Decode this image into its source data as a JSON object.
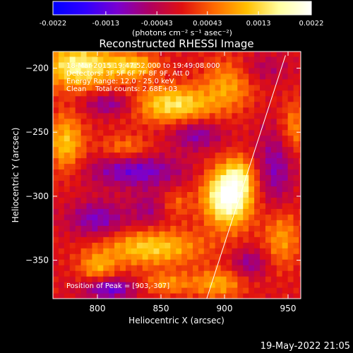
{
  "colorbar": {
    "tick_labels": [
      "-0.0022",
      "-0.0013",
      "-0.00043",
      "0.00043",
      "0.0013",
      "0.0022"
    ],
    "tick_values": [
      -0.0022,
      -0.0013,
      -0.00043,
      0.00043,
      0.0013,
      0.0022
    ],
    "unit_label": "(photons cm⁻² s⁻¹ asec⁻²)",
    "colors": [
      "#0000ff",
      "#3000ff",
      "#7a00d0",
      "#b00060",
      "#e01010",
      "#ff6a00",
      "#ffc000",
      "#ffffa0",
      "#ffffff"
    ]
  },
  "chart_data": {
    "type": "heatmap",
    "title": "Reconstructed RHESSI Image",
    "xlabel": "Heliocentric X (arcsec)",
    "ylabel": "Heliocentric Y (arcsec)",
    "xlim": [
      765,
      960
    ],
    "ylim": [
      -380,
      -187
    ],
    "x_ticks": [
      800,
      850,
      900,
      950
    ],
    "x_tick_labels": [
      "800",
      "850",
      "900",
      "950"
    ],
    "y_ticks": [
      -200,
      -250,
      -300,
      -350
    ],
    "y_tick_labels": [
      "−200",
      "−250",
      "−300",
      "−350"
    ],
    "value_range": [
      -0.0022,
      0.0022
    ],
    "info_lines": [
      "18-Mar-2015 19:47:52.000 to 19:49:08.000",
      "Detectors: 3F 5F 6F 7F 8F 9F, Att 0",
      "Energy Range: 12.0 - 25.0 keV",
      "Clean    Total counts: 2.68E+03"
    ],
    "peak_label": "Position of Peak = [903,-307]",
    "peak": [
      903,
      -307
    ],
    "limb_line": [
      [
        886,
        -380
      ],
      [
        948,
        -190
      ]
    ],
    "blobs": [
      {
        "x": 903,
        "y": -300,
        "sx": 13,
        "sy": 16,
        "a": 0.0024
      },
      {
        "x": 912,
        "y": -283,
        "sx": 8,
        "sy": 10,
        "a": 0.0008
      },
      {
        "x": 785,
        "y": -198,
        "sx": 20,
        "sy": 12,
        "a": 0.0017
      },
      {
        "x": 828,
        "y": -198,
        "sx": 14,
        "sy": 7,
        "a": 0.0012
      },
      {
        "x": 860,
        "y": -228,
        "sx": 22,
        "sy": 10,
        "a": 0.0015
      },
      {
        "x": 903,
        "y": -212,
        "sx": 14,
        "sy": 14,
        "a": 0.0009
      },
      {
        "x": 775,
        "y": -258,
        "sx": 10,
        "sy": 16,
        "a": 0.0012
      },
      {
        "x": 822,
        "y": -262,
        "sx": 14,
        "sy": 7,
        "a": 0.0007
      },
      {
        "x": 842,
        "y": -340,
        "sx": 28,
        "sy": 10,
        "a": 0.0013
      },
      {
        "x": 800,
        "y": -355,
        "sx": 10,
        "sy": 8,
        "a": 0.0009
      },
      {
        "x": 855,
        "y": -368,
        "sx": 14,
        "sy": 6,
        "a": 0.0008
      },
      {
        "x": 895,
        "y": -368,
        "sx": 14,
        "sy": 8,
        "a": 0.001
      },
      {
        "x": 945,
        "y": -332,
        "sx": 10,
        "sy": 16,
        "a": 0.0009
      },
      {
        "x": 955,
        "y": -246,
        "sx": 8,
        "sy": 14,
        "a": 0.0008
      },
      {
        "x": 862,
        "y": -305,
        "sx": 8,
        "sy": 8,
        "a": 0.0005
      },
      {
        "x": 830,
        "y": -280,
        "sx": 26,
        "sy": 9,
        "a": -0.0011
      },
      {
        "x": 800,
        "y": -318,
        "sx": 16,
        "sy": 10,
        "a": -0.001
      },
      {
        "x": 810,
        "y": -228,
        "sx": 14,
        "sy": 6,
        "a": -0.0009
      },
      {
        "x": 940,
        "y": -278,
        "sx": 10,
        "sy": 22,
        "a": -0.0009
      },
      {
        "x": 878,
        "y": -252,
        "sx": 14,
        "sy": 8,
        "a": -0.0009
      },
      {
        "x": 810,
        "y": -372,
        "sx": 14,
        "sy": 6,
        "a": -0.0012
      },
      {
        "x": 920,
        "y": -352,
        "sx": 10,
        "sy": 8,
        "a": -0.0008
      },
      {
        "x": 840,
        "y": -310,
        "sx": 10,
        "sy": 10,
        "a": -0.0006
      },
      {
        "x": 930,
        "y": -200,
        "sx": 14,
        "sy": 8,
        "a": -0.0005
      }
    ]
  },
  "footer": {
    "timestamp": "19-May-2022 21:05"
  }
}
